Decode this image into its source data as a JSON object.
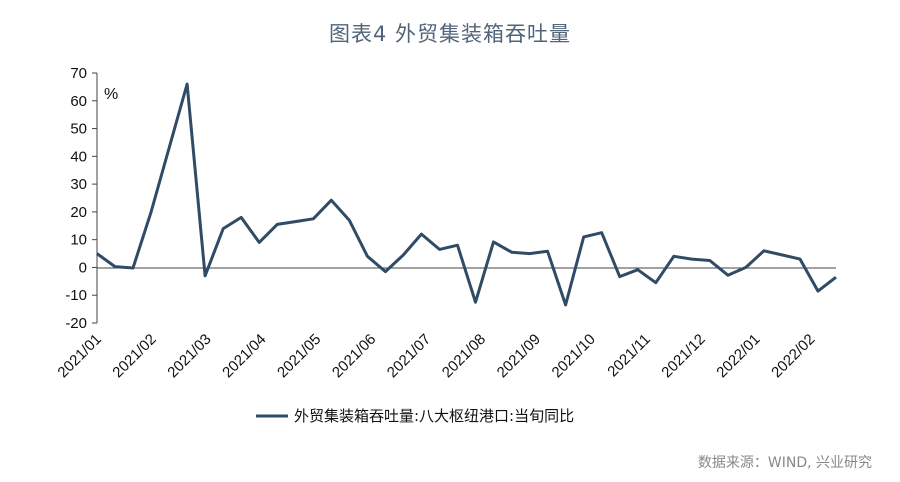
{
  "title": "图表4 外贸集装箱吞吐量",
  "source": "数据来源：WIND, 兴业研究",
  "chart_data": {
    "type": "line",
    "unit_label": "%",
    "ylim": [
      -20,
      70
    ],
    "yticks": [
      -20,
      -10,
      0,
      10,
      20,
      30,
      40,
      50,
      60,
      70
    ],
    "x_labels": [
      "2021/01",
      "2021/02",
      "2021/03",
      "2021/04",
      "2021/05",
      "2021/06",
      "2021/07",
      "2021/08",
      "2021/09",
      "2021/10",
      "2021/11",
      "2021/12",
      "2022/01",
      "2022/02"
    ],
    "grid": false,
    "legend_position": "bottom",
    "series": [
      {
        "name": "外贸集装箱吞吐量:八大枢纽港口:当旬同比",
        "color": "#2f4b66",
        "values": [
          5,
          0.3,
          -0.2,
          20,
          43,
          66,
          -3,
          14,
          18,
          9,
          15.5,
          16.5,
          17.5,
          24.2,
          17,
          4,
          -1.5,
          4.5,
          12,
          6.5,
          8,
          -12.5,
          9.2,
          5.5,
          5,
          5.8,
          -13.5,
          11,
          12.5,
          -3.3,
          -0.8,
          -5.5,
          4,
          3,
          2.5,
          -2.8,
          0,
          6,
          4.5,
          3,
          -8.5,
          -3.5
        ]
      }
    ]
  }
}
